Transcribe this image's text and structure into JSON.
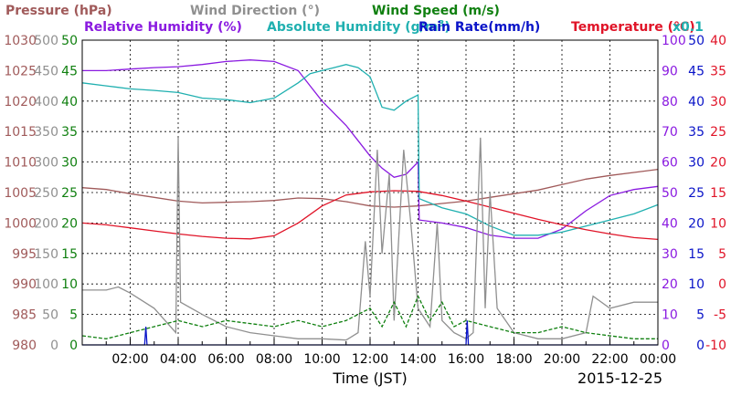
{
  "chart_data": {
    "type": "line",
    "date_label": "2015-12-25",
    "xlabel": "Time (JST)",
    "x_tick_labels": [
      "02:00",
      "04:00",
      "06:00",
      "08:00",
      "10:00",
      "12:00",
      "14:00",
      "16:00",
      "18:00",
      "20:00",
      "22:00",
      "00:00"
    ],
    "x_range_hours": [
      0,
      24
    ],
    "grid": true,
    "legend": [
      {
        "label": "Pressure (hPa)",
        "color": "#a05a5a"
      },
      {
        "label": "Wind Direction (°)",
        "color": "#909090"
      },
      {
        "label": "Wind Speed (m/s)",
        "color": "#108010"
      },
      {
        "label": "Relative Humidity (%)",
        "color": "#8a1ae0"
      },
      {
        "label": "Absolute Humidity (g/m",
        "sup": "3",
        "close": ")",
        "color": "#20b0b0"
      },
      {
        "label": "Rain Rate(mm/h)",
        "color": "#0a14c8"
      },
      {
        "label": "Temperature (°C)",
        "color": "#e01428"
      }
    ],
    "abs_hum_scale": "x0.1",
    "axes": {
      "pressure": {
        "range": [
          980,
          1030
        ],
        "ticks": [
          "1030",
          "1025",
          "1020",
          "1015",
          "1010",
          "1005",
          "1000",
          "995",
          "990",
          "985",
          "980"
        ],
        "color": "#a05a5a"
      },
      "wind_direction": {
        "range": [
          0,
          500
        ],
        "ticks": [
          "500",
          "450",
          "400",
          "350",
          "300",
          "250",
          "200",
          "150",
          "100",
          "50",
          "0"
        ],
        "color": "#909090"
      },
      "wind_speed": {
        "range": [
          0,
          50
        ],
        "ticks": [
          "50",
          "45",
          "40",
          "35",
          "30",
          "25",
          "20",
          "15",
          "10",
          "5",
          "0"
        ],
        "color": "#108010"
      },
      "humidity": {
        "range": [
          0,
          100
        ],
        "ticks": [
          "100",
          "90",
          "80",
          "70",
          "60",
          "50",
          "40",
          "30",
          "20",
          "10",
          "0"
        ],
        "color": "#8a1ae0"
      },
      "rain_rate": {
        "range": [
          0,
          50
        ],
        "ticks": [
          "50",
          "45",
          "40",
          "35",
          "30",
          "25",
          "20",
          "15",
          "10",
          "5",
          "0"
        ],
        "color": "#0a14c8"
      },
      "temperature": {
        "range": [
          -10,
          40
        ],
        "ticks": [
          "40",
          "35",
          "30",
          "25",
          "20",
          "15",
          "10",
          "5",
          "0",
          "-5",
          "-10"
        ],
        "color": "#e01428"
      }
    },
    "series": [
      {
        "name": "Pressure (hPa)",
        "axis": "pressure",
        "color": "#a05a5a",
        "points": [
          [
            0,
            1005.8
          ],
          [
            1,
            1005.5
          ],
          [
            2,
            1004.8
          ],
          [
            3,
            1004.2
          ],
          [
            4,
            1003.6
          ],
          [
            5,
            1003.3
          ],
          [
            6,
            1003.4
          ],
          [
            7,
            1003.5
          ],
          [
            8,
            1003.7
          ],
          [
            9,
            1004.1
          ],
          [
            10,
            1004.0
          ],
          [
            11,
            1003.5
          ],
          [
            12,
            1002.8
          ],
          [
            13,
            1002.6
          ],
          [
            14,
            1002.8
          ],
          [
            15,
            1003.2
          ],
          [
            16,
            1003.6
          ],
          [
            17,
            1004.2
          ],
          [
            18,
            1004.8
          ],
          [
            19,
            1005.4
          ],
          [
            20,
            1006.3
          ],
          [
            21,
            1007.2
          ],
          [
            22,
            1007.8
          ],
          [
            23,
            1008.3
          ],
          [
            24,
            1008.8
          ]
        ]
      },
      {
        "name": "Relative Humidity (%)",
        "axis": "humidity",
        "color": "#8a1ae0",
        "points": [
          [
            0,
            90
          ],
          [
            1,
            90
          ],
          [
            2,
            90.5
          ],
          [
            3,
            91
          ],
          [
            4,
            91.3
          ],
          [
            5,
            92
          ],
          [
            6,
            93
          ],
          [
            7,
            93.5
          ],
          [
            8,
            93
          ],
          [
            9,
            90
          ],
          [
            9.5,
            85
          ],
          [
            10,
            80
          ],
          [
            10.5,
            76
          ],
          [
            11,
            72
          ],
          [
            11.5,
            67
          ],
          [
            12,
            62
          ],
          [
            12.5,
            58
          ],
          [
            13,
            55
          ],
          [
            13.5,
            56
          ],
          [
            14,
            60
          ],
          [
            14.05,
            41
          ],
          [
            15,
            40
          ],
          [
            16,
            38.5
          ],
          [
            17,
            36
          ],
          [
            18,
            35
          ],
          [
            19,
            35
          ],
          [
            20,
            38
          ],
          [
            21,
            44
          ],
          [
            22,
            49
          ],
          [
            23,
            51
          ],
          [
            24,
            52
          ]
        ]
      },
      {
        "name": "Absolute Humidity (g/m3)",
        "axis": "humidity",
        "color": "#20b0b0",
        "points": [
          [
            0,
            86
          ],
          [
            1,
            85
          ],
          [
            2,
            84
          ],
          [
            3,
            83.5
          ],
          [
            4,
            82.8
          ],
          [
            5,
            81
          ],
          [
            6,
            80.5
          ],
          [
            7,
            79.5
          ],
          [
            8,
            81
          ],
          [
            9,
            86
          ],
          [
            9.5,
            89
          ],
          [
            10,
            90
          ],
          [
            10.5,
            91
          ],
          [
            11,
            92
          ],
          [
            11.5,
            91
          ],
          [
            12,
            88
          ],
          [
            12.5,
            78
          ],
          [
            13,
            77
          ],
          [
            13.5,
            80
          ],
          [
            14,
            82
          ],
          [
            14.05,
            48
          ],
          [
            15,
            45
          ],
          [
            16,
            43
          ],
          [
            17,
            39
          ],
          [
            18,
            36
          ],
          [
            19,
            36
          ],
          [
            20,
            37
          ],
          [
            21,
            39
          ],
          [
            22,
            41
          ],
          [
            23,
            43
          ],
          [
            24,
            46
          ]
        ]
      },
      {
        "name": "Temperature (°C)",
        "axis": "temperature",
        "color": "#e01428",
        "points": [
          [
            0,
            10
          ],
          [
            1,
            9.7
          ],
          [
            2,
            9.2
          ],
          [
            3,
            8.7
          ],
          [
            4,
            8.2
          ],
          [
            5,
            7.8
          ],
          [
            6,
            7.5
          ],
          [
            7,
            7.4
          ],
          [
            8,
            7.9
          ],
          [
            9,
            10
          ],
          [
            10,
            12.8
          ],
          [
            11,
            14.6
          ],
          [
            12,
            15.1
          ],
          [
            13,
            15.3
          ],
          [
            14,
            15.2
          ],
          [
            15,
            14.5
          ],
          [
            16,
            13.6
          ],
          [
            17,
            12.6
          ],
          [
            18,
            11.6
          ],
          [
            19,
            10.6
          ],
          [
            20,
            9.7
          ],
          [
            21,
            8.9
          ],
          [
            22,
            8.2
          ],
          [
            23,
            7.6
          ],
          [
            24,
            7.3
          ]
        ]
      },
      {
        "name": "Wind Direction (°)",
        "axis": "wind_direction",
        "color": "#909090",
        "points": [
          [
            0,
            90
          ],
          [
            1,
            90
          ],
          [
            1.5,
            95
          ],
          [
            2,
            85
          ],
          [
            3,
            60
          ],
          [
            3.9,
            20
          ],
          [
            4,
            340
          ],
          [
            4.1,
            70
          ],
          [
            5,
            50
          ],
          [
            6,
            30
          ],
          [
            7,
            20
          ],
          [
            8,
            15
          ],
          [
            9,
            10
          ],
          [
            10,
            10
          ],
          [
            11,
            8
          ],
          [
            11.5,
            20
          ],
          [
            11.8,
            170
          ],
          [
            12,
            80
          ],
          [
            12.3,
            320
          ],
          [
            12.5,
            150
          ],
          [
            12.8,
            280
          ],
          [
            13,
            40
          ],
          [
            13.4,
            320
          ],
          [
            13.7,
            200
          ],
          [
            14,
            60
          ],
          [
            14.5,
            30
          ],
          [
            14.8,
            200
          ],
          [
            15,
            40
          ],
          [
            15.5,
            20
          ],
          [
            16,
            10
          ],
          [
            16.3,
            20
          ],
          [
            16.6,
            340
          ],
          [
            16.8,
            60
          ],
          [
            17,
            250
          ],
          [
            17.3,
            60
          ],
          [
            18,
            20
          ],
          [
            19,
            10
          ],
          [
            20,
            10
          ],
          [
            21,
            20
          ],
          [
            21.3,
            80
          ],
          [
            22,
            60
          ],
          [
            23,
            70
          ],
          [
            24,
            70
          ]
        ]
      },
      {
        "name": "Wind Speed (m/s)",
        "axis": "wind_speed",
        "color": "#108010",
        "points": [
          [
            0,
            1.5
          ],
          [
            1,
            1
          ],
          [
            2,
            2
          ],
          [
            3,
            3
          ],
          [
            4,
            4
          ],
          [
            5,
            3
          ],
          [
            6,
            4
          ],
          [
            7,
            3.5
          ],
          [
            8,
            3
          ],
          [
            9,
            4
          ],
          [
            10,
            3
          ],
          [
            11,
            4
          ],
          [
            12,
            6
          ],
          [
            12.5,
            3
          ],
          [
            13,
            7
          ],
          [
            13.5,
            3
          ],
          [
            14,
            8
          ],
          [
            14.5,
            4
          ],
          [
            15,
            7
          ],
          [
            15.5,
            3
          ],
          [
            16,
            4
          ],
          [
            17,
            3
          ],
          [
            18,
            2
          ],
          [
            19,
            2
          ],
          [
            20,
            3
          ],
          [
            21,
            2
          ],
          [
            22,
            1.5
          ],
          [
            23,
            1
          ],
          [
            24,
            1
          ]
        ]
      },
      {
        "name": "Rain Rate(mm/h)",
        "axis": "rain_rate",
        "color": "#0a14c8",
        "points": [
          [
            0,
            0
          ],
          [
            2.6,
            0
          ],
          [
            2.65,
            3
          ],
          [
            2.7,
            0
          ],
          [
            16,
            0
          ],
          [
            16.05,
            4
          ],
          [
            16.1,
            0
          ],
          [
            24,
            0
          ]
        ]
      }
    ]
  }
}
